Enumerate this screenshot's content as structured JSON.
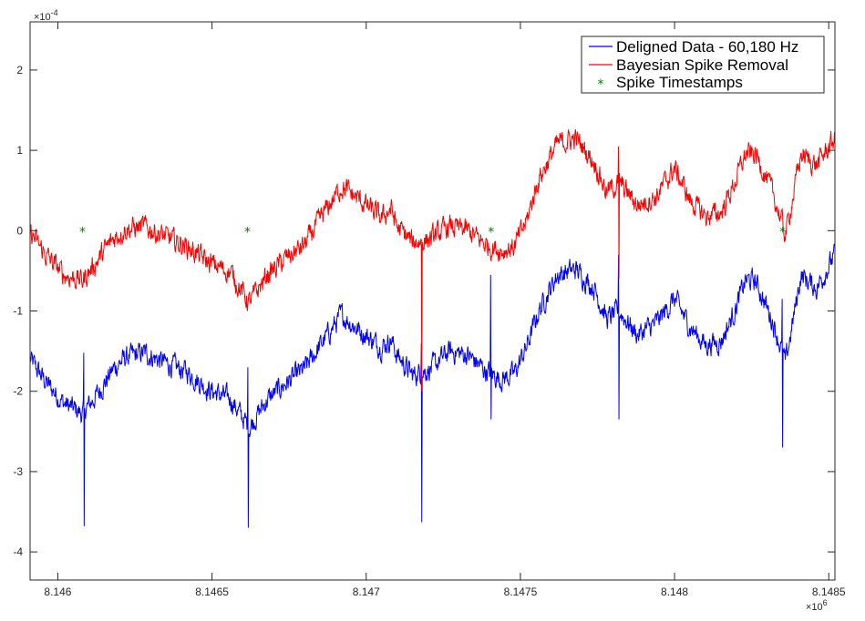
{
  "chart_data": {
    "type": "line",
    "title": "",
    "xlabel": "",
    "ylabel": "",
    "x_multiplier": "×10^6",
    "y_multiplier": "×10^-4",
    "x_exponent_base": "×10",
    "x_exponent_power": "6",
    "y_exponent_base": "×10",
    "y_exponent_power": "-4",
    "xlim": [
      8.14591,
      8.14852
    ],
    "ylim": [
      -4.35,
      2.6
    ],
    "x_ticks": [
      {
        "value": 8.146,
        "label": "8.146"
      },
      {
        "value": 8.1465,
        "label": "8.1465"
      },
      {
        "value": 8.147,
        "label": "8.147"
      },
      {
        "value": 8.1475,
        "label": "8.1475"
      },
      {
        "value": 8.148,
        "label": "8.148"
      },
      {
        "value": 8.1485,
        "label": "8.1485"
      }
    ],
    "y_ticks": [
      {
        "value": 2,
        "label": "2"
      },
      {
        "value": 1,
        "label": "1"
      },
      {
        "value": 0,
        "label": "0"
      },
      {
        "value": -1,
        "label": "-1"
      },
      {
        "value": -2,
        "label": "-2"
      },
      {
        "value": -3,
        "label": "-3"
      },
      {
        "value": -4,
        "label": "-4"
      }
    ],
    "grid": false,
    "legend_position": "top-right",
    "series": [
      {
        "name": "Deligned Data - 60,180 Hz",
        "color": "#0000ff",
        "style": "line",
        "x": [
          8.14591,
          8.14596,
          8.14602,
          8.14608,
          8.14612,
          8.14616,
          8.14618,
          8.14622,
          8.14628,
          8.14635,
          8.14642,
          8.14649,
          8.14656,
          8.14662,
          8.14668,
          8.14674,
          8.1468,
          8.14686,
          8.14692,
          8.14698,
          8.14705,
          8.14708,
          8.1471,
          8.14715,
          8.14721,
          8.14727,
          8.14733,
          8.14739,
          8.14744,
          8.14748,
          8.14752,
          8.14756,
          8.14762,
          8.14768,
          8.14774,
          8.14778,
          8.14782,
          8.14788,
          8.14794,
          8.148,
          8.14805,
          8.1481,
          8.14815,
          8.14819,
          8.14823,
          8.14826,
          8.14828,
          8.14832,
          8.14836,
          8.14841,
          8.14846,
          8.14852
        ],
        "y": [
          -1.6,
          -1.88,
          -2.15,
          -2.28,
          -2.08,
          -1.85,
          -1.72,
          -1.58,
          -1.52,
          -1.65,
          -1.76,
          -1.98,
          -2.1,
          -2.45,
          -2.1,
          -1.9,
          -1.72,
          -1.38,
          -1.05,
          -1.25,
          -1.45,
          -1.35,
          -1.55,
          -1.8,
          -1.72,
          -1.5,
          -1.55,
          -1.75,
          -1.85,
          -1.78,
          -1.45,
          -1.0,
          -0.55,
          -0.48,
          -0.72,
          -1.1,
          -1.0,
          -1.3,
          -1.15,
          -0.85,
          -1.2,
          -1.42,
          -1.38,
          -1.05,
          -0.62,
          -0.62,
          -0.78,
          -1.15,
          -1.65,
          -0.55,
          -0.72,
          -0.3
        ]
      },
      {
        "name": "Bayesian Spike Removal",
        "color": "#ff0000",
        "style": "line",
        "x": [
          8.14591,
          8.14596,
          8.14602,
          8.14608,
          8.14612,
          8.14616,
          8.14618,
          8.14622,
          8.14628,
          8.14635,
          8.14642,
          8.14649,
          8.14656,
          8.14662,
          8.14668,
          8.14674,
          8.1468,
          8.14686,
          8.14692,
          8.14698,
          8.14705,
          8.14708,
          8.1471,
          8.14715,
          8.14721,
          8.14727,
          8.14733,
          8.14739,
          8.14744,
          8.14748,
          8.14752,
          8.14756,
          8.14762,
          8.14768,
          8.14774,
          8.14778,
          8.14782,
          8.14788,
          8.14794,
          8.148,
          8.14805,
          8.1481,
          8.14815,
          8.14819,
          8.14823,
          8.14826,
          8.14828,
          8.14832,
          8.14836,
          8.14841,
          8.14846,
          8.14852
        ],
        "y": [
          -0.02,
          -0.3,
          -0.55,
          -0.62,
          -0.42,
          -0.2,
          -0.1,
          0.02,
          0.05,
          -0.08,
          -0.2,
          -0.4,
          -0.52,
          -0.9,
          -0.55,
          -0.35,
          -0.18,
          0.2,
          0.55,
          0.38,
          0.15,
          0.28,
          0.05,
          -0.15,
          -0.1,
          0.05,
          0.0,
          -0.18,
          -0.25,
          -0.2,
          0.12,
          0.65,
          1.08,
          1.15,
          0.85,
          0.48,
          0.6,
          0.32,
          0.42,
          0.78,
          0.38,
          0.18,
          0.22,
          0.55,
          0.95,
          0.95,
          0.82,
          0.45,
          -0.05,
          0.95,
          0.82,
          1.15
        ]
      },
      {
        "name": "Spike Timestamps",
        "color": "#008000",
        "style": "marker",
        "marker": "*",
        "x": [
          8.14608,
          8.146615,
          8.147405,
          8.14835
        ],
        "y": [
          0,
          0,
          0,
          0
        ]
      }
    ],
    "spikes": [
      {
        "x": 8.146085,
        "blue_min": -3.68,
        "blue_max": -1.52
      },
      {
        "x": 8.146617,
        "blue_min": -3.7,
        "blue_max": -1.7
      },
      {
        "x": 8.14718,
        "blue_min": -3.63,
        "blue_max": -1.4,
        "red_min": -2.0
      },
      {
        "x": 8.147405,
        "blue_min": -2.35,
        "blue_max": -0.55
      },
      {
        "x": 8.14782,
        "blue_min": -2.35,
        "blue_max": -0.3,
        "red_min": -0.6,
        "red_max": 1.05
      },
      {
        "x": 8.14835,
        "blue_min": -2.7,
        "blue_max": -0.85
      }
    ]
  }
}
